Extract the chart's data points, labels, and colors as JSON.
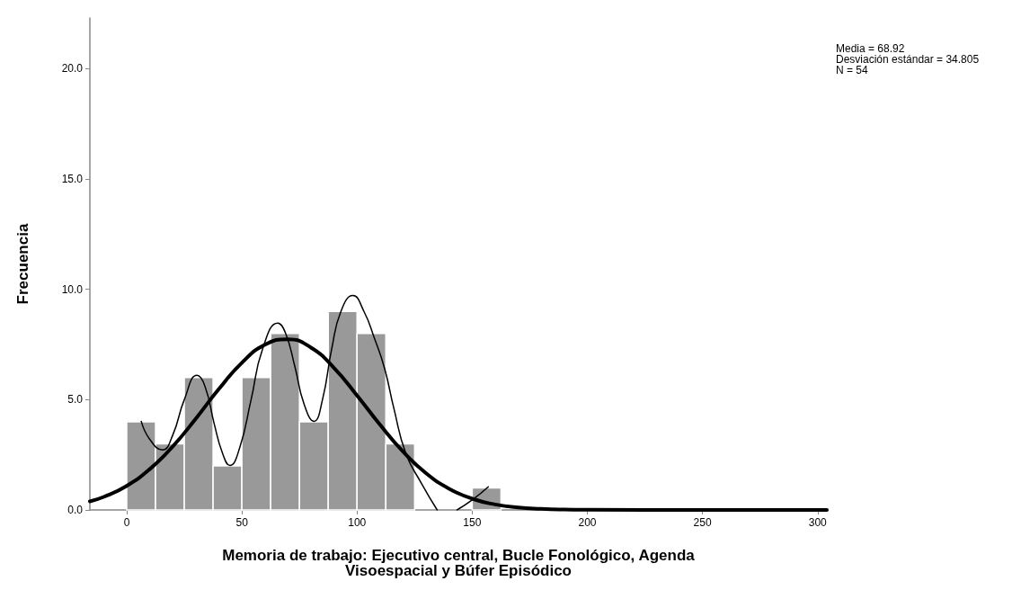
{
  "chart_data": {
    "type": "histogram",
    "xlabel": "Memoria de trabajo: Ejecutivo central, Bucle Fonológico, Agenda\nVisoespacial y Búfer Episódico",
    "ylabel": "Frecuencia",
    "annotations": [
      "Media = 68.92",
      "Desviación estándar = 34.805",
      "N = 54"
    ],
    "bins": [
      0,
      12.5,
      25,
      37.5,
      50,
      62.5,
      75,
      87.5,
      100,
      112.5,
      125,
      137.5,
      150,
      162.5
    ],
    "values": [
      4,
      3,
      6,
      2,
      6,
      8,
      4,
      9,
      8,
      3,
      0,
      0,
      1
    ],
    "color": "#999999",
    "xlim": [
      -16,
      304
    ],
    "xticks": [
      0,
      50,
      100,
      150,
      200,
      250,
      300
    ],
    "ylim": [
      0,
      22.3
    ],
    "yticks": [
      {
        "value": 0,
        "label": "0.0"
      },
      {
        "value": 5,
        "label": "5.0"
      },
      {
        "value": 10,
        "label": "10.0"
      },
      {
        "value": 15,
        "label": "15.0"
      },
      {
        "value": 20,
        "label": "20.0"
      }
    ],
    "grid": false,
    "series": [
      {
        "type": "line",
        "color": "#000000",
        "x": [
          -16,
          -10,
          0,
          10,
          20,
          30,
          40,
          50,
          60,
          70,
          80,
          90,
          100,
          110,
          120,
          130,
          140,
          150,
          160,
          170,
          180,
          190,
          200,
          250,
          304
        ],
        "values": [
          0.39,
          0.59,
          1.09,
          1.85,
          2.88,
          4.14,
          5.48,
          6.67,
          7.49,
          7.74,
          7.36,
          6.44,
          5.19,
          3.86,
          2.64,
          1.66,
          0.96,
          0.51,
          0.25,
          0.11,
          0.05,
          0.02,
          0.01,
          0,
          0
        ]
      },
      {
        "type": "line",
        "color": "#000000",
        "x": [
          6.3,
          10,
          15.5,
          20,
          25,
          30.5,
          34,
          38,
          41.5,
          44.8,
          49,
          54,
          59,
          65.6,
          69,
          73,
          77,
          81.3,
          85,
          89,
          93,
          98.2,
          103,
          107.5,
          112,
          116,
          121.2,
          128,
          134.8,
          139,
          143.4,
          150,
          157
        ],
        "values": [
          4.02,
          3.2,
          2.72,
          3.4,
          5.0,
          6.1,
          5.6,
          3.9,
          2.6,
          2.02,
          2.8,
          5.0,
          7.3,
          8.47,
          8.0,
          6.5,
          4.8,
          4.02,
          5.0,
          7.3,
          9.0,
          9.72,
          9.0,
          7.8,
          6.4,
          4.6,
          2.56,
          1.2,
          0,
          null,
          0,
          0.45,
          1.05
        ]
      }
    ]
  }
}
